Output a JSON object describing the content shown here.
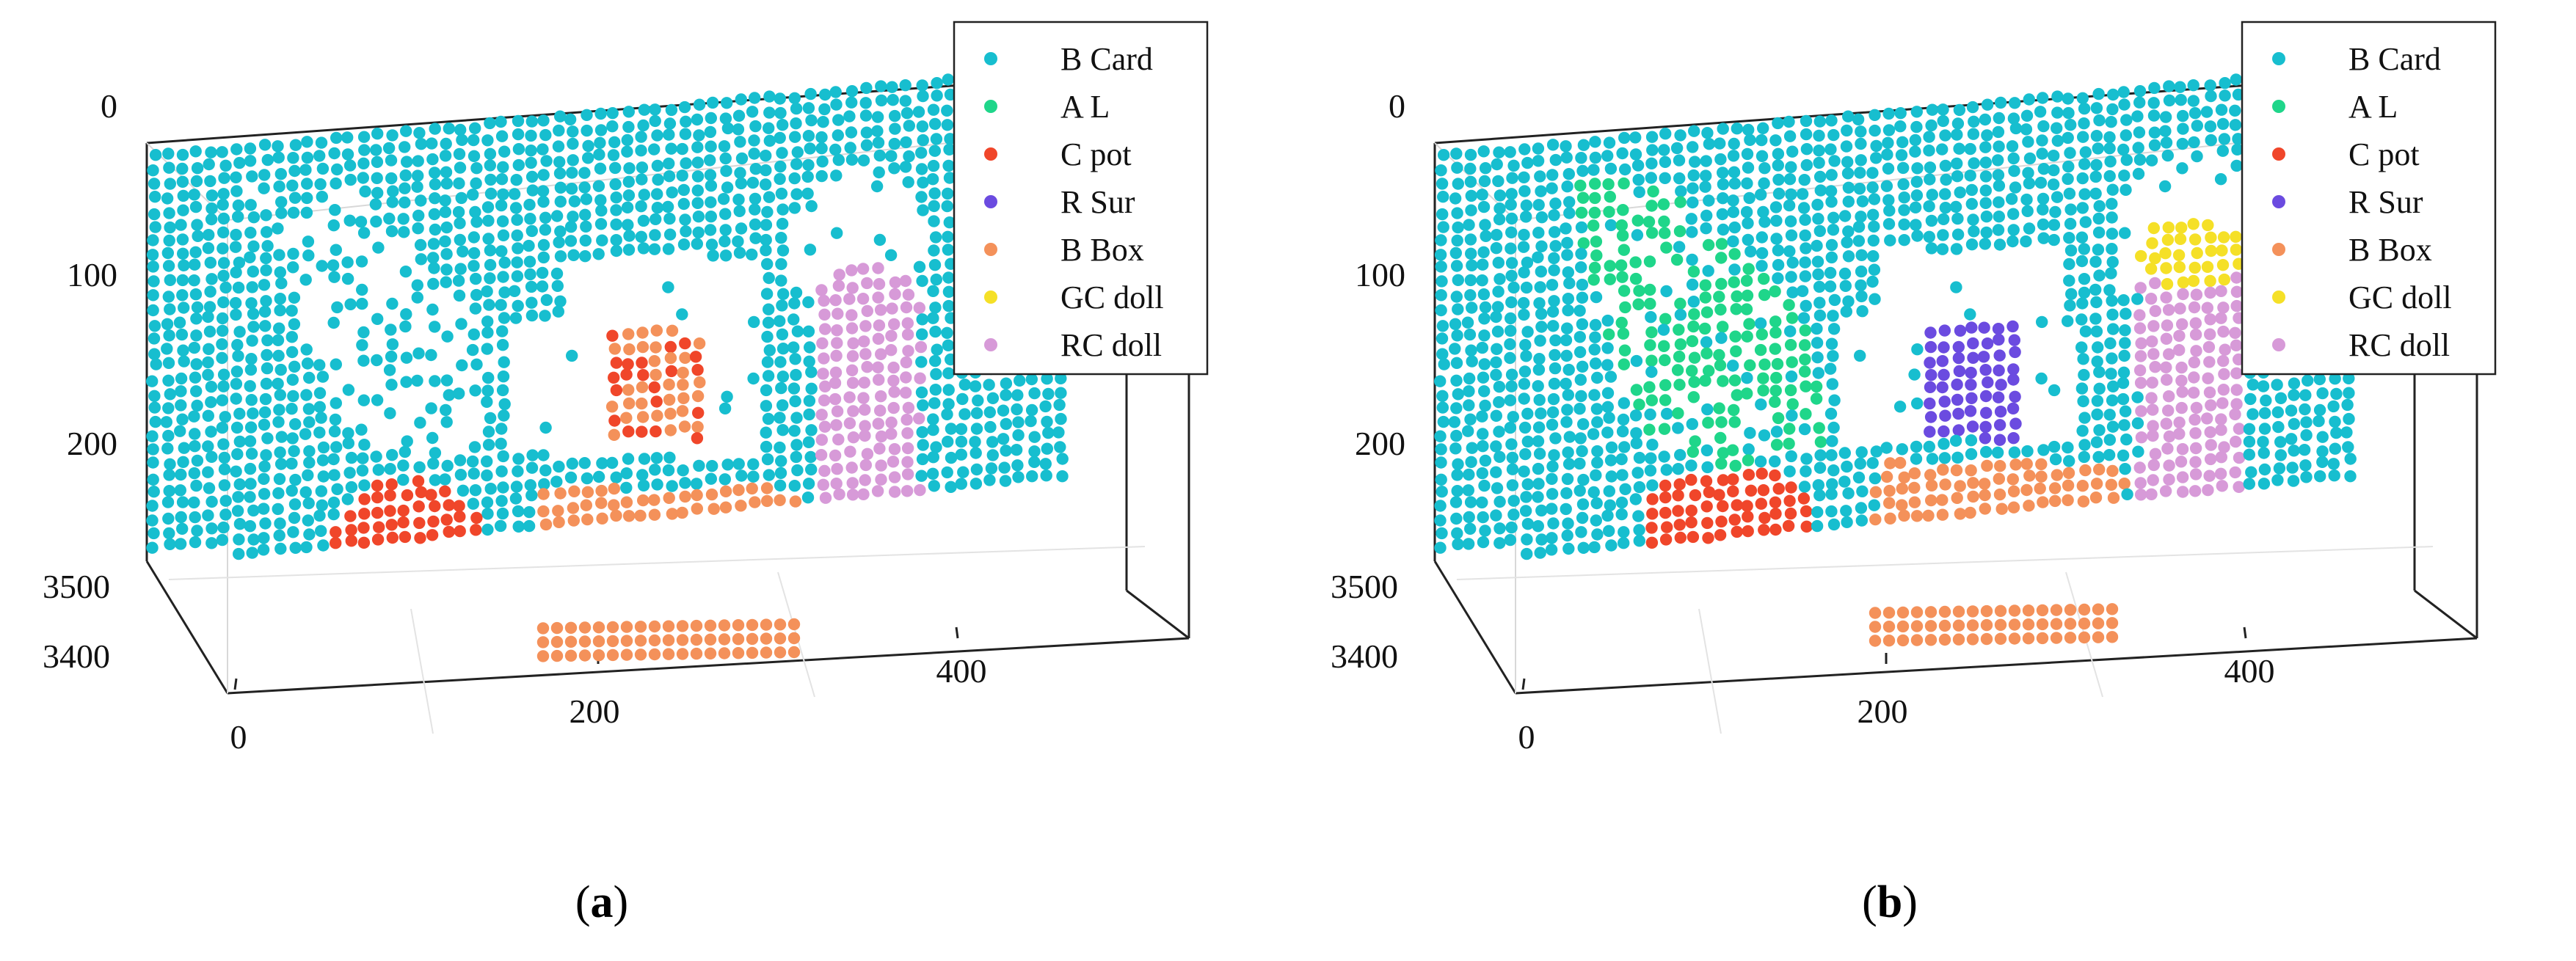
{
  "chart_data": [
    {
      "type": "scatter",
      "panel_label": "a",
      "x_ticks": [
        "0",
        "200",
        "400"
      ],
      "y_ticks": [
        "3500",
        "3400"
      ],
      "z_ticks": [
        "0",
        "100",
        "200"
      ],
      "legend": [
        {
          "label": "B Card",
          "color": "#17becf"
        },
        {
          "label": "A L",
          "color": "#1fd68a"
        },
        {
          "label": "C pot",
          "color": "#f0462a"
        },
        {
          "label": "R Sur",
          "color": "#6b4be0"
        },
        {
          "label": "B  Box",
          "color": "#f4915a"
        },
        {
          "label": "GC doll",
          "color": "#f5e027"
        },
        {
          "label": "RC doll",
          "color": "#d79ad8"
        }
      ],
      "legend_position": "top-right",
      "grid": true,
      "regions": [
        {
          "series": "B Card",
          "desc": "background wall",
          "x": [
            0,
            500
          ],
          "z": [
            0,
            240
          ]
        },
        {
          "series": "C pot",
          "x": [
            60,
            150
          ],
          "z": [
            185,
            260
          ]
        },
        {
          "series": "B  Box",
          "x": [
            170,
            310
          ],
          "z": [
            195,
            265
          ]
        },
        {
          "series": "C pot",
          "x": [
            235,
            285
          ],
          "z": [
            105,
            165
          ]
        },
        {
          "series": "RC doll",
          "x": [
            360,
            415
          ],
          "z": [
            100,
            250
          ]
        }
      ]
    },
    {
      "type": "scatter",
      "panel_label": "b",
      "x_ticks": [
        "0",
        "200",
        "400"
      ],
      "y_ticks": [
        "3500",
        "3400"
      ],
      "z_ticks": [
        "0",
        "100",
        "200"
      ],
      "legend": [
        {
          "label": "B Card",
          "color": "#17becf"
        },
        {
          "label": "A L",
          "color": "#1fd68a"
        },
        {
          "label": "C pot",
          "color": "#f0462a"
        },
        {
          "label": "R Sur",
          "color": "#6b4be0"
        },
        {
          "label": "B  Box",
          "color": "#f4915a"
        },
        {
          "label": "GC doll",
          "color": "#f5e027"
        },
        {
          "label": "RC doll",
          "color": "#d79ad8"
        }
      ],
      "legend_position": "top-right",
      "grid": true,
      "regions": [
        {
          "series": "B Card",
          "desc": "background wall",
          "x": [
            0,
            500
          ],
          "z": [
            0,
            240
          ]
        },
        {
          "series": "A L",
          "desc": "plant leaves",
          "x": [
            60,
            180
          ],
          "z": [
            50,
            200
          ]
        },
        {
          "series": "C pot",
          "x": [
            60,
            150
          ],
          "z": [
            185,
            260
          ]
        },
        {
          "series": "B  Box",
          "x": [
            170,
            310
          ],
          "z": [
            190,
            260
          ]
        },
        {
          "series": "R Sur",
          "x": [
            235,
            285
          ],
          "z": [
            100,
            160
          ]
        },
        {
          "series": "GC doll",
          "x": [
            360,
            410
          ],
          "z": [
            60,
            90
          ]
        },
        {
          "series": "RC doll",
          "x": [
            355,
            415
          ],
          "z": [
            90,
            250
          ]
        }
      ]
    }
  ]
}
